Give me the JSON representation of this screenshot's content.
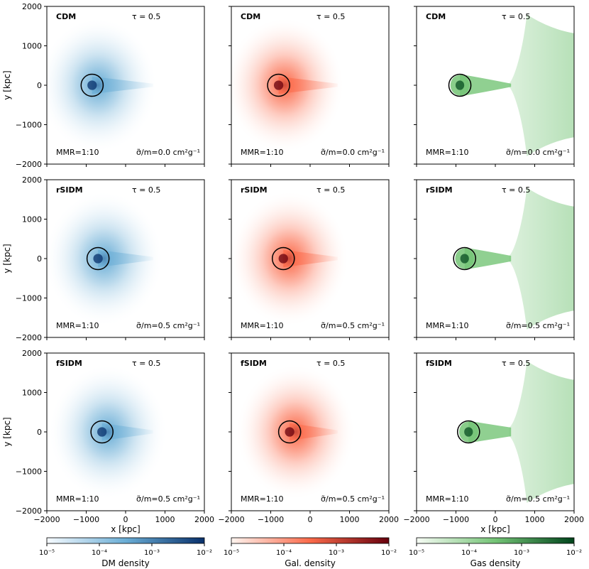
{
  "chart_data": {
    "type": "heatmap",
    "title": "",
    "xlabel": "x [kpc]",
    "ylabel": "y [kpc]",
    "xlim": [
      -2000,
      2000
    ],
    "ylim": [
      -2000,
      2000
    ],
    "x_ticks": [
      -2000,
      -1000,
      0,
      1000,
      2000
    ],
    "y_ticks": [
      2000,
      1000,
      0,
      -1000,
      -2000
    ],
    "x_tick_labels": [
      "−2000",
      "−1000",
      "0",
      "1000",
      "2000"
    ],
    "y_tick_labels": [
      "2000",
      "1000",
      "0",
      "−1000",
      "−2000"
    ],
    "columns": [
      {
        "quantity": "DM",
        "colormap": "Blues",
        "colorbar_label": "DM density",
        "low_color": "#f7fbff",
        "mid_color": "#6baed6",
        "high_color": "#08306b"
      },
      {
        "quantity": "Gal.",
        "colormap": "Reds",
        "colorbar_label": "Gal. density",
        "low_color": "#fff5f0",
        "mid_color": "#fb6a4a",
        "high_color": "#67000d"
      },
      {
        "quantity": "Gas",
        "colormap": "Greens",
        "colorbar_label": "Gas density",
        "low_color": "#f7fcf5",
        "mid_color": "#74c476",
        "high_color": "#00441b"
      }
    ],
    "rows": [
      {
        "model": "CDM",
        "tau": "τ = 0.5",
        "mmr": "MMR=1:10",
        "cross_section": "σ̃/m=0.0 cm²g⁻¹",
        "circle_center_x": [
          -850,
          -800,
          -900
        ],
        "circle_center_y": [
          0,
          0,
          0
        ],
        "circle_radius": 280,
        "gas_bridge_thickness": 40
      },
      {
        "model": "rSIDM",
        "tau": "τ = 0.5",
        "mmr": "MMR=1:10",
        "cross_section": "σ̃/m=0.5 cm²g⁻¹",
        "circle_center_x": [
          -700,
          -680,
          -780
        ],
        "circle_center_y": [
          0,
          0,
          0
        ],
        "circle_radius": 280,
        "gas_bridge_thickness": 70
      },
      {
        "model": "fSIDM",
        "tau": "τ = 0.5",
        "mmr": "MMR=1:10",
        "cross_section": "σ̃/m=0.5 cm²g⁻¹",
        "circle_center_x": [
          -600,
          -520,
          -680
        ],
        "circle_center_y": [
          0,
          0,
          0
        ],
        "circle_radius": 280,
        "gas_bridge_thickness": 110
      }
    ],
    "colorbar_range": [
      1e-05,
      0.01
    ],
    "colorbar_ticks": [
      "10⁻⁵",
      "10⁻⁴",
      "10⁻³",
      "10⁻²"
    ]
  }
}
